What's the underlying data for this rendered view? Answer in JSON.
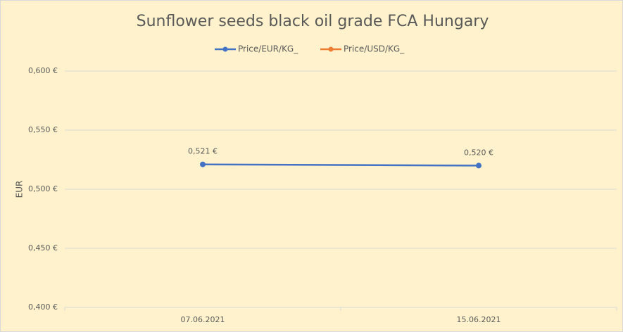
{
  "chart_data": {
    "type": "line",
    "title": "Sunflower seeds black oil grade FCA Hungary",
    "ylabel": "EUR",
    "categories": [
      "07.06.2021",
      "15.06.2021"
    ],
    "series": [
      {
        "name": "Price/EUR/KG_",
        "color": "#4472c4",
        "values": [
          0.521,
          0.52
        ],
        "value_labels": [
          "0,521 €",
          "0,520 €"
        ]
      },
      {
        "name": "Price/USD/KG_",
        "color": "#ed7d31",
        "values": [
          null,
          null
        ]
      }
    ],
    "ylim": [
      0.4,
      0.6
    ],
    "yticks": [
      {
        "value": 0.4,
        "label": "0,400 €"
      },
      {
        "value": 0.45,
        "label": "0,450 €"
      },
      {
        "value": 0.5,
        "label": "0,500 €"
      },
      {
        "value": 0.55,
        "label": "0,550 €"
      },
      {
        "value": 0.6,
        "label": "0,600 €"
      }
    ],
    "grid": true,
    "legend": "top",
    "background": "#fff2cc"
  }
}
